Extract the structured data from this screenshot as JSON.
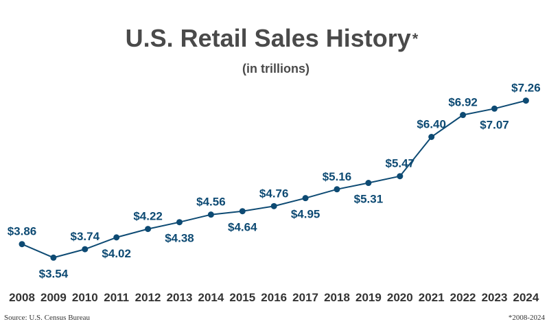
{
  "chart_data": {
    "type": "line",
    "title": "U.S. Retail Sales History",
    "title_mark": "*",
    "subtitle": "(in trillions)",
    "x": [
      "2008",
      "2009",
      "2010",
      "2011",
      "2012",
      "2013",
      "2014",
      "2015",
      "2016",
      "2017",
      "2018",
      "2019",
      "2020",
      "2021",
      "2022",
      "2023",
      "2024"
    ],
    "values": [
      3.86,
      3.54,
      3.74,
      4.02,
      4.22,
      4.38,
      4.56,
      4.64,
      4.76,
      4.95,
      5.16,
      5.31,
      5.47,
      6.4,
      6.92,
      7.07,
      7.26
    ],
    "data_labels": [
      "$3.86",
      "$3.54",
      "$3.74",
      "$4.02",
      "$4.22",
      "$4.38",
      "$4.56",
      "$4.64",
      "$4.76",
      "$4.95",
      "$5.16",
      "$5.31",
      "$5.47",
      "$6.40",
      "$6.92",
      "$7.07",
      "$7.26"
    ],
    "ylim": [
      3.4,
      7.4
    ],
    "grid": false,
    "xlabel": "",
    "ylabel": ""
  },
  "footer": {
    "source": "Source: U.S. Census Bureau",
    "note": "*2008-2024"
  },
  "colors": {
    "line": "#0d4a73",
    "label": "#0d4a73",
    "title": "#4a4a4a"
  }
}
